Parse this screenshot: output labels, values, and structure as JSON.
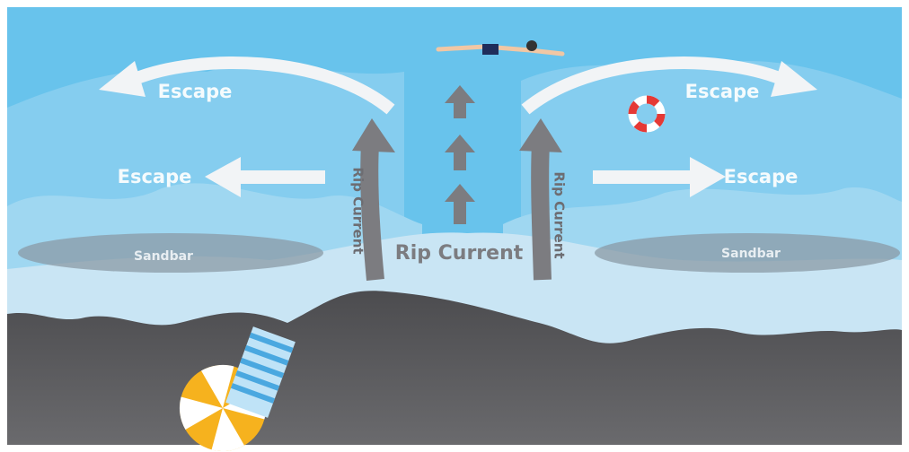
{
  "labels": {
    "escape": [
      "Escape",
      "Escape",
      "Escape",
      "Escape"
    ],
    "sandbar": [
      "Sandbar",
      "Sandbar"
    ],
    "rip_current_main": "Rip Current",
    "rip_current_side": [
      "Rip Current",
      "Rip Current"
    ]
  }
}
